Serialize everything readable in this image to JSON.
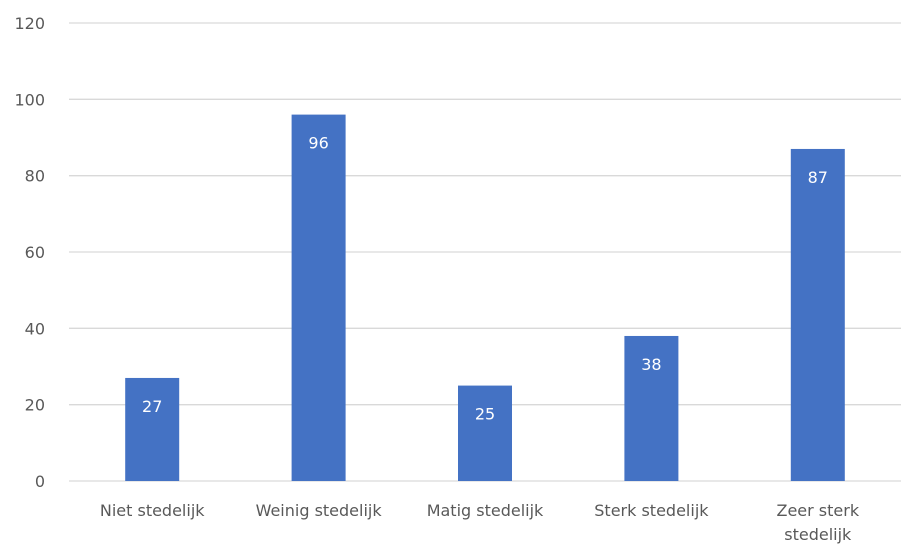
{
  "chart_data": {
    "type": "bar",
    "categories": [
      [
        "Niet stedelijk"
      ],
      [
        "Weinig stedelijk"
      ],
      [
        "Matig stedelijk"
      ],
      [
        "Sterk stedelijk"
      ],
      [
        "Zeer sterk",
        "stedelijk"
      ]
    ],
    "values": [
      27,
      96,
      25,
      38,
      87
    ],
    "data_labels": [
      "27",
      "96",
      "25",
      "38",
      "87"
    ],
    "yticks": [
      "0",
      "20",
      "40",
      "60",
      "80",
      "100",
      "120"
    ],
    "ylim": [
      0,
      120
    ],
    "grid": true,
    "legend": "none",
    "colors": {
      "bar": "#4472C4",
      "grid": "#D9D9D9",
      "text": "#595959",
      "data_label": "#FFFFFF"
    }
  }
}
